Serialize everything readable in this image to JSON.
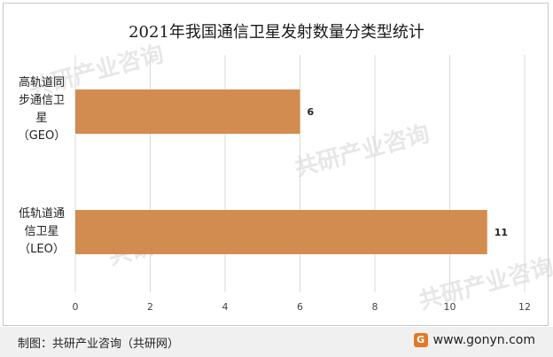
{
  "chart_data": {
    "type": "bar",
    "orientation": "horizontal",
    "title": "2021年我国通信卫星发射数量分类型统计",
    "categories": [
      [
        "高轨道同",
        "步通信卫",
        "星",
        "（GEO）"
      ],
      [
        "低轨道通",
        "信卫星",
        "（LEO）"
      ]
    ],
    "values": [
      6,
      11
    ],
    "data_labels": [
      "6",
      "11"
    ],
    "xlim": [
      0,
      12
    ],
    "xticks": [
      "0",
      "2",
      "4",
      "6",
      "8",
      "10",
      "12"
    ],
    "grid": "vertical",
    "bar_color": "#d38c4f"
  },
  "footer": {
    "source": "制图：共研产业咨询（共研网）",
    "site": "www.gonyn.com",
    "logo_icon": "gonyn-logo-icon"
  },
  "watermark": {
    "text": "共研产业咨询",
    "sub": "www.gonyn.com"
  }
}
